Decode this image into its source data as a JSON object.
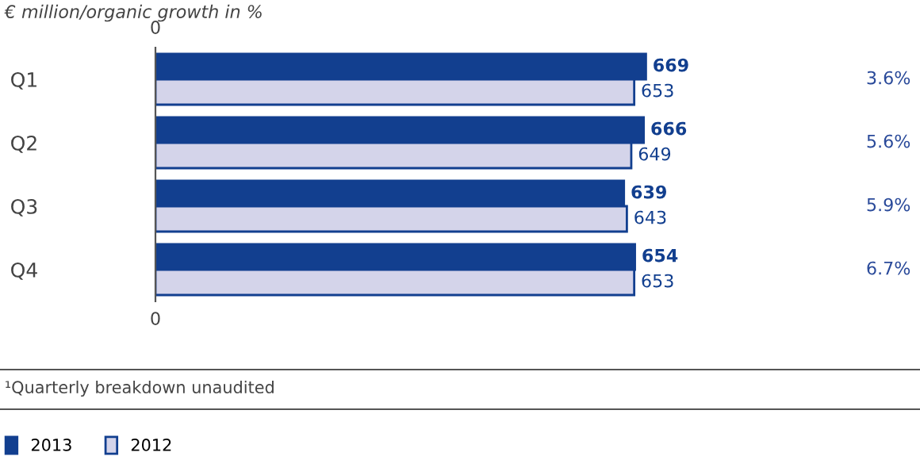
{
  "chart_data": {
    "type": "bar",
    "orientation": "horizontal",
    "title": "€ million/organic growth in %",
    "categories": [
      "Q1",
      "Q2",
      "Q3",
      "Q4"
    ],
    "series": [
      {
        "name": "2013",
        "color": "#123f8f",
        "values": [
          669,
          666,
          639,
          654
        ]
      },
      {
        "name": "2012",
        "color": "#d4d4ea",
        "values": [
          653,
          649,
          643,
          653
        ]
      }
    ],
    "data_labels": true,
    "legend": "bottom",
    "grid": false,
    "annotations": [
      "3.6%",
      "5.6%",
      "5.9%",
      "6.7%",
      "0",
      "0",
      "¹Quarterly breakdown unaudited"
    ]
  }
}
